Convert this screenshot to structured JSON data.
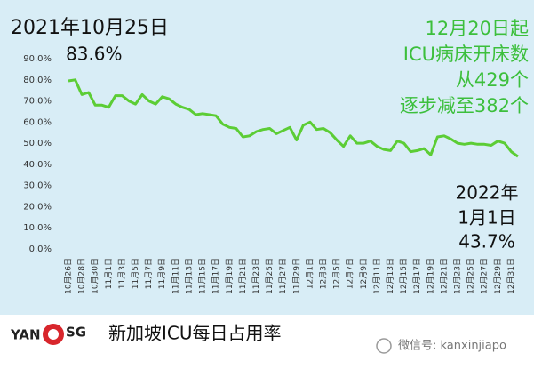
{
  "chart_data": {
    "type": "line",
    "title": "新加坡ICU每日占用率",
    "annotations": [
      "2021年10月25日",
      "83.6%",
      "12月20日起",
      "ICU病床开床数",
      "从429个",
      "逐步减至382个",
      "2022年",
      "1月1日",
      "43.7%"
    ],
    "logo": [
      "YAN",
      "SG"
    ],
    "source": "微信号: kanxinjiapo",
    "categories": [
      "10月26日",
      null,
      "10月28日",
      null,
      "10月30日",
      null,
      "11月1日",
      null,
      "11月3日",
      null,
      "11月5日",
      null,
      "11月7日",
      null,
      "11月9日",
      null,
      "11月11日",
      null,
      "11月13日",
      null,
      "11月15日",
      null,
      "11月17日",
      null,
      "11月19日",
      null,
      "11月21日",
      null,
      "11月23日",
      null,
      "11月25日",
      null,
      "11月27日",
      null,
      "11月29日",
      null,
      "12月1日",
      null,
      "12月3日",
      null,
      "12月5日",
      null,
      "12月7日",
      null,
      "12月9日",
      null,
      "12月11日",
      null,
      "12月13日",
      null,
      "12月15日",
      null,
      "12月17日",
      null,
      "12月19日",
      null,
      "12月21日",
      null,
      "12月23日",
      null,
      "12月25日",
      null,
      "12月27日",
      null,
      "12月29日",
      null,
      "12月31日",
      null
    ],
    "values": [
      79.5,
      80,
      73,
      74,
      68,
      68,
      67,
      72.5,
      72.5,
      70,
      68.5,
      73,
      70,
      68.5,
      72,
      71,
      68.5,
      67,
      66,
      63.5,
      64,
      63.5,
      63,
      59,
      57.5,
      57,
      53,
      53.5,
      55.5,
      56.5,
      57,
      54.5,
      56,
      57.5,
      51.5,
      58.5,
      60,
      56.5,
      57,
      55,
      51.5,
      48.5,
      53.5,
      50,
      50,
      51,
      48.5,
      47,
      46.5,
      51,
      50,
      46,
      46.5,
      47.5,
      44.5,
      53,
      53.5,
      52,
      50,
      49.5,
      50,
      49.5,
      49.5,
      49,
      51,
      50,
      46,
      43.7
    ],
    "color": "#5ccd35",
    "ylim": [
      0,
      90
    ],
    "yticks": [
      {
        "value": 0,
        "label": "0.0%"
      },
      {
        "value": 10,
        "label": "10.0%"
      },
      {
        "value": 20,
        "label": "20.0%"
      },
      {
        "value": 30,
        "label": "30.0%"
      },
      {
        "value": 40,
        "label": "40.0%"
      },
      {
        "value": 50,
        "label": "50.0%"
      },
      {
        "value": 60,
        "label": "60.0%"
      },
      {
        "value": 70,
        "label": "70.0%"
      },
      {
        "value": 80,
        "label": "80.0%"
      },
      {
        "value": 90,
        "label": "90.0%"
      }
    ],
    "grid": false
  }
}
